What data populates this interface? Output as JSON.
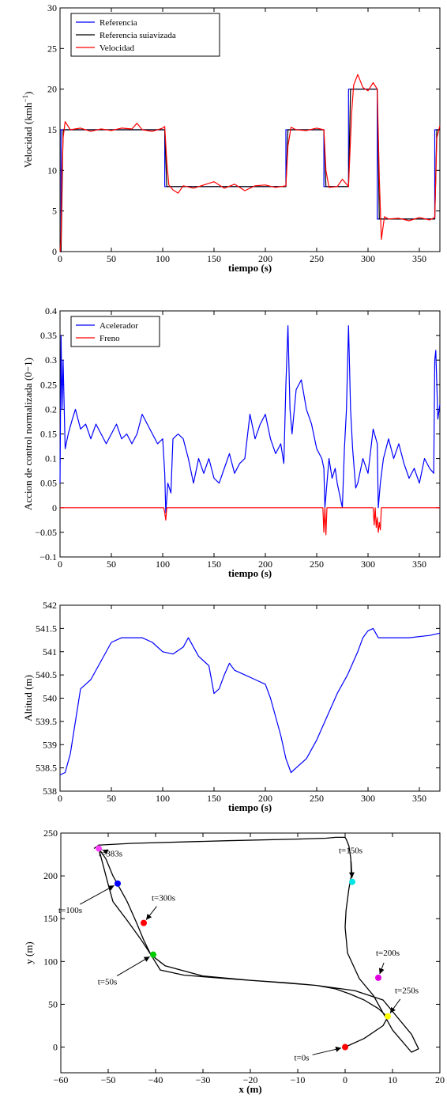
{
  "chart_data": [
    {
      "type": "line",
      "xlabel": "tiempo (s)",
      "ylabel": "Velocidad (kmh",
      "ylabel_sup": "−1",
      "ylabel_end": ")",
      "xlim": [
        0,
        370
      ],
      "ylim": [
        0,
        30
      ],
      "xticks": [
        0,
        50,
        100,
        150,
        200,
        250,
        300,
        350
      ],
      "yticks": [
        0,
        5,
        10,
        15,
        20,
        25,
        30
      ],
      "legend": "top-left",
      "grid": false,
      "series": [
        {
          "name": "Referencia",
          "color": "#0000ff",
          "x": [
            0,
            1,
            1,
            102,
            102,
            220,
            220,
            257,
            257,
            281,
            281,
            309,
            309,
            365,
            365,
            370
          ],
          "y": [
            0,
            0,
            15,
            15,
            8,
            8,
            15,
            15,
            8,
            8,
            20,
            20,
            4,
            4,
            15,
            15
          ]
        },
        {
          "name": "Referencia suiavizada",
          "color": "#000000",
          "x": [
            0,
            1,
            3,
            102,
            104,
            220,
            222,
            257,
            259,
            281,
            283,
            309,
            311,
            365,
            367,
            370
          ],
          "y": [
            0,
            0,
            15,
            15,
            8,
            8,
            15,
            15,
            8,
            8,
            20,
            20,
            4,
            4,
            15,
            15
          ]
        },
        {
          "name": "Velocidad",
          "color": "#ff0000",
          "x": [
            0,
            1,
            2,
            3,
            5,
            10,
            20,
            30,
            40,
            50,
            60,
            70,
            75,
            80,
            90,
            100,
            102,
            104,
            106,
            110,
            115,
            120,
            130,
            140,
            150,
            160,
            170,
            180,
            190,
            200,
            210,
            220,
            222,
            225,
            230,
            240,
            250,
            257,
            259,
            262,
            270,
            275,
            281,
            284,
            286,
            290,
            295,
            300,
            305,
            309,
            311,
            313,
            316,
            320,
            330,
            340,
            350,
            360,
            365,
            367,
            370
          ],
          "y": [
            0,
            1.5,
            10,
            14,
            16,
            15,
            15.2,
            14.8,
            15.1,
            14.9,
            15.2,
            15.1,
            15.8,
            15,
            14.8,
            15.2,
            15.4,
            11,
            8.2,
            7.6,
            7.2,
            8.1,
            7.8,
            8.2,
            8.6,
            7.8,
            8.3,
            7.5,
            8.1,
            8.2,
            7.9,
            8.1,
            13,
            15.3,
            15,
            14.9,
            15.2,
            15,
            10,
            7.9,
            8,
            8.9,
            8,
            17,
            20.5,
            21.8,
            20.2,
            19.8,
            20.8,
            20,
            9,
            1.5,
            4.3,
            4,
            4.1,
            3.8,
            4.2,
            3.9,
            4.2,
            14,
            15.5
          ]
        }
      ]
    },
    {
      "type": "line",
      "xlabel": "tiempo (s)",
      "ylabel": "Accion de control normalizada (0−1)",
      "xlim": [
        0,
        370
      ],
      "ylim": [
        -0.1,
        0.4
      ],
      "xticks": [
        0,
        50,
        100,
        150,
        200,
        250,
        300,
        350
      ],
      "yticks": [
        "−0.1",
        "−0.05",
        "0",
        "0.05",
        "0.1",
        "0.15",
        "0.2",
        "0.25",
        "0.3",
        "0.35",
        "0.4"
      ],
      "legend": "top-left",
      "grid": false,
      "series": [
        {
          "name": "Acelerador",
          "color": "#0000ff",
          "x": [
            0,
            1,
            2,
            3,
            5,
            8,
            12,
            15,
            20,
            25,
            30,
            35,
            40,
            45,
            50,
            55,
            60,
            65,
            70,
            75,
            80,
            85,
            90,
            95,
            100,
            102,
            103,
            105,
            108,
            110,
            115,
            120,
            125,
            130,
            135,
            140,
            145,
            150,
            155,
            160,
            165,
            170,
            175,
            180,
            185,
            190,
            195,
            200,
            205,
            210,
            215,
            218,
            220,
            222,
            224,
            226,
            230,
            235,
            240,
            245,
            250,
            255,
            257,
            258,
            262,
            265,
            268,
            270,
            275,
            277,
            279,
            281,
            283,
            285,
            288,
            290,
            295,
            300,
            305,
            309,
            310,
            312,
            315,
            320,
            325,
            330,
            335,
            340,
            345,
            350,
            355,
            360,
            364,
            365,
            366,
            368,
            370
          ],
          "y": [
            0.05,
            0.35,
            0.2,
            0.3,
            0.12,
            0.15,
            0.18,
            0.2,
            0.16,
            0.17,
            0.14,
            0.17,
            0.15,
            0.13,
            0.15,
            0.17,
            0.14,
            0.15,
            0.13,
            0.15,
            0.19,
            0.17,
            0.15,
            0.13,
            0.14,
            0.07,
            -0.01,
            0.05,
            0.03,
            0.14,
            0.15,
            0.14,
            0.1,
            0.05,
            0.1,
            0.07,
            0.1,
            0.06,
            0.05,
            0.08,
            0.11,
            0.07,
            0.09,
            0.1,
            0.19,
            0.14,
            0.17,
            0.19,
            0.14,
            0.11,
            0.13,
            0.09,
            0.25,
            0.37,
            0.2,
            0.15,
            0.24,
            0.26,
            0.2,
            0.17,
            0.12,
            0.1,
            0.08,
            0.0,
            0.1,
            0.06,
            0.08,
            0.05,
            0.0,
            0.12,
            0.2,
            0.37,
            0.2,
            0.12,
            0.04,
            0.05,
            0.1,
            0.07,
            0.16,
            0.13,
            0.0,
            0.05,
            0.1,
            0.14,
            0.1,
            0.13,
            0.09,
            0.06,
            0.08,
            0.05,
            0.1,
            0.08,
            0.07,
            0.3,
            0.32,
            0.18,
            0.21
          ]
        },
        {
          "name": "Freno",
          "color": "#ff0000",
          "x": [
            0,
            101,
            102,
            103,
            104,
            256,
            257,
            258,
            259,
            260,
            305,
            306,
            307,
            308,
            309,
            310,
            311,
            312,
            313,
            370
          ],
          "y": [
            0,
            0,
            -0.01,
            -0.025,
            0,
            0,
            -0.05,
            0,
            -0.055,
            0,
            0,
            -0.035,
            0,
            -0.04,
            -0.02,
            -0.05,
            -0.03,
            -0.045,
            0,
            0
          ]
        }
      ]
    },
    {
      "type": "line",
      "xlabel": "tiempo (s)",
      "ylabel": "Altitud (m)",
      "xlim": [
        0,
        370
      ],
      "ylim": [
        538,
        542
      ],
      "xticks": [
        0,
        50,
        100,
        150,
        200,
        250,
        300,
        350
      ],
      "yticks": [
        "538",
        "538.5",
        "539",
        "539.5",
        "540",
        "540.5",
        "541",
        "541.5",
        "542"
      ],
      "legend": "none",
      "grid": false,
      "series": [
        {
          "color": "#0000ff",
          "x": [
            0,
            5,
            10,
            15,
            20,
            25,
            30,
            40,
            50,
            60,
            70,
            80,
            90,
            100,
            110,
            120,
            125,
            130,
            135,
            140,
            145,
            150,
            155,
            160,
            165,
            170,
            180,
            190,
            200,
            205,
            210,
            215,
            220,
            225,
            230,
            240,
            250,
            260,
            270,
            280,
            290,
            295,
            300,
            305,
            310,
            320,
            340,
            360,
            370
          ],
          "y": [
            538.35,
            538.4,
            538.8,
            539.5,
            540.2,
            540.3,
            540.4,
            540.8,
            541.2,
            541.3,
            541.3,
            541.3,
            541.2,
            541.0,
            540.95,
            541.1,
            541.3,
            541.1,
            540.9,
            540.8,
            540.7,
            540.1,
            540.2,
            540.5,
            540.75,
            540.6,
            540.5,
            540.4,
            540.3,
            540.0,
            539.6,
            539.2,
            538.7,
            538.4,
            538.5,
            538.7,
            539.1,
            539.6,
            540.1,
            540.5,
            541.0,
            541.3,
            541.45,
            541.5,
            541.3,
            541.3,
            541.3,
            541.35,
            541.4
          ]
        }
      ]
    },
    {
      "type": "line",
      "xlabel": "x (m)",
      "ylabel": "y (m)",
      "xlim": [
        -60,
        20
      ],
      "ylim": [
        -30,
        250
      ],
      "xticks": [
        "−60",
        "−50",
        "−40",
        "−30",
        "−20",
        "−10",
        "0",
        "10",
        "20"
      ],
      "yticks": [
        0,
        50,
        100,
        150,
        200,
        250
      ],
      "legend": "none",
      "grid": false,
      "series": [
        {
          "color": "#000000",
          "x": [
            0,
            4,
            8,
            9,
            7,
            4,
            1,
            -2,
            -6,
            -12,
            -20,
            -30,
            -38,
            -41,
            -43,
            -46,
            -49,
            -50,
            -52,
            -50.5,
            -49,
            -47.5,
            -46,
            -44,
            -42.5,
            -41,
            -39,
            -34,
            -25,
            -15,
            -6,
            2,
            8,
            14,
            15.5,
            14,
            10,
            6,
            3,
            0.5,
            0,
            0.2,
            0.8,
            1.3,
            1.2,
            0.8,
            0.3,
            0,
            -2,
            -4,
            -10,
            -25,
            -45,
            -52,
            -53
          ],
          "y": [
            0,
            10,
            25,
            35,
            45,
            55,
            62,
            68,
            72,
            75,
            78,
            83,
            95,
            108,
            125,
            148,
            170,
            190,
            232,
            220,
            200,
            185,
            170,
            145,
            125,
            108,
            90,
            84,
            80,
            76,
            72,
            66,
            55,
            15,
            -2,
            -6,
            20,
            60,
            80,
            110,
            140,
            160,
            185,
            200,
            220,
            235,
            242,
            245,
            245,
            244,
            243,
            241,
            238,
            236,
            232
          ]
        }
      ],
      "markers": [
        {
          "label": "t=0s",
          "x": 0,
          "y": 0,
          "color": "#ff0000",
          "text_dx": -55,
          "text_dy": 13
        },
        {
          "label": "t=50s",
          "x": -40.5,
          "y": 108,
          "color": "#00cc00",
          "text_dx": -58,
          "text_dy": 34
        },
        {
          "label": "t=100s",
          "x": -48,
          "y": 191,
          "color": "#0000ff",
          "text_dx": -60,
          "text_dy": 33
        },
        {
          "label": "t=150s",
          "x": 1.5,
          "y": 193,
          "color": "#00e5e5",
          "text_dx": -2,
          "text_dy": -40
        },
        {
          "label": "t=200s",
          "x": 7,
          "y": 81,
          "color": "#e000e0",
          "text_dx": 12,
          "text_dy": -32
        },
        {
          "label": "t=250s",
          "x": 9,
          "y": 36,
          "color": "#ffff00",
          "text_dx": 24,
          "text_dy": -33
        },
        {
          "label": "t=300s",
          "x": -42.5,
          "y": 145,
          "color": "#ff0000",
          "text_dx": 25,
          "text_dy": -32
        },
        {
          "label": "t=383s",
          "x": -52,
          "y": 232,
          "color": "#ff40ff",
          "text_dx": 15,
          "text_dy": 6
        }
      ]
    }
  ]
}
